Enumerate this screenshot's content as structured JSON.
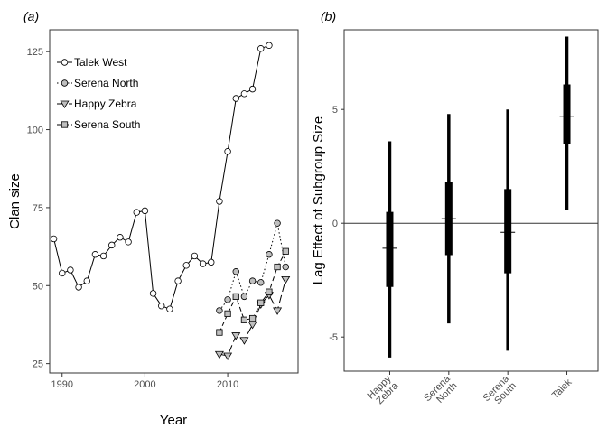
{
  "chart_data": [
    {
      "panel_label": "(a)",
      "type": "line",
      "xlabel": "Year",
      "ylabel": "Clan size",
      "xlim": [
        1988.5,
        2018.5
      ],
      "ylim": [
        22,
        132
      ],
      "xticks": [
        1990,
        2000,
        2010
      ],
      "yticks": [
        25,
        50,
        75,
        100,
        125
      ],
      "grid": false,
      "legend_position": "top-left",
      "series": [
        {
          "name": "Talek West",
          "line": "solid",
          "marker": "circle",
          "fill": "#ffffff",
          "x": [
            1989,
            1990,
            1991,
            1992,
            1993,
            1994,
            1995,
            1996,
            1997,
            1998,
            1999,
            2000,
            2001,
            2002,
            2003,
            2004,
            2005,
            2006,
            2007,
            2008,
            2009,
            2010,
            2011,
            2012,
            2013,
            2014,
            2015
          ],
          "y": [
            65,
            54,
            55,
            49.5,
            51.5,
            60,
            59.5,
            63,
            65.5,
            64,
            73.5,
            74,
            47.5,
            43.5,
            42.5,
            51.5,
            56.5,
            59.5,
            57,
            57.5,
            77,
            93,
            110,
            111.5,
            113,
            126,
            127
          ]
        },
        {
          "name": "Serena North",
          "line": "dotted",
          "marker": "circle",
          "fill": "#bfbfbf",
          "x": [
            2009,
            2010,
            2011,
            2012,
            2013,
            2014,
            2015,
            2016,
            2017
          ],
          "y": [
            42,
            45.5,
            54.5,
            46.5,
            51.5,
            51,
            60,
            70,
            56
          ]
        },
        {
          "name": "Happy Zebra",
          "line": "longdash",
          "marker": "triangle-down",
          "fill": "#bfbfbf",
          "x": [
            2009,
            2010,
            2011,
            2012,
            2013,
            2014,
            2015,
            2016,
            2017
          ],
          "y": [
            28,
            27.5,
            34,
            32.5,
            37.5,
            44,
            47,
            42,
            52
          ]
        },
        {
          "name": "Serena South",
          "line": "dashed",
          "marker": "square",
          "fill": "#bfbfbf",
          "x": [
            2009,
            2010,
            2011,
            2012,
            2013,
            2014,
            2015,
            2016,
            2017
          ],
          "y": [
            35,
            41,
            46.5,
            39,
            39.5,
            44.5,
            48,
            56,
            61
          ]
        }
      ]
    },
    {
      "panel_label": "(b)",
      "type": "interval",
      "xlabel": "",
      "ylabel": "Lag Effect of Subgroup Size",
      "ylim": [
        -6.5,
        8.5
      ],
      "yticks": [
        -5,
        0,
        5
      ],
      "reference_line": 0,
      "grid": false,
      "categories": [
        "Happy\nZebra",
        "Serena\nNorth",
        "Serena\nSouth",
        "Talek"
      ],
      "estimates": [
        {
          "median": -1.1,
          "inner": [
            -2.8,
            0.5
          ],
          "outer": [
            -5.9,
            3.6
          ]
        },
        {
          "median": 0.2,
          "inner": [
            -1.4,
            1.8
          ],
          "outer": [
            -4.4,
            4.8
          ]
        },
        {
          "median": -0.4,
          "inner": [
            -2.2,
            1.5
          ],
          "outer": [
            -5.6,
            5.0
          ]
        },
        {
          "median": 4.7,
          "inner": [
            3.5,
            6.1
          ],
          "outer": [
            0.6,
            8.2
          ]
        }
      ]
    }
  ]
}
